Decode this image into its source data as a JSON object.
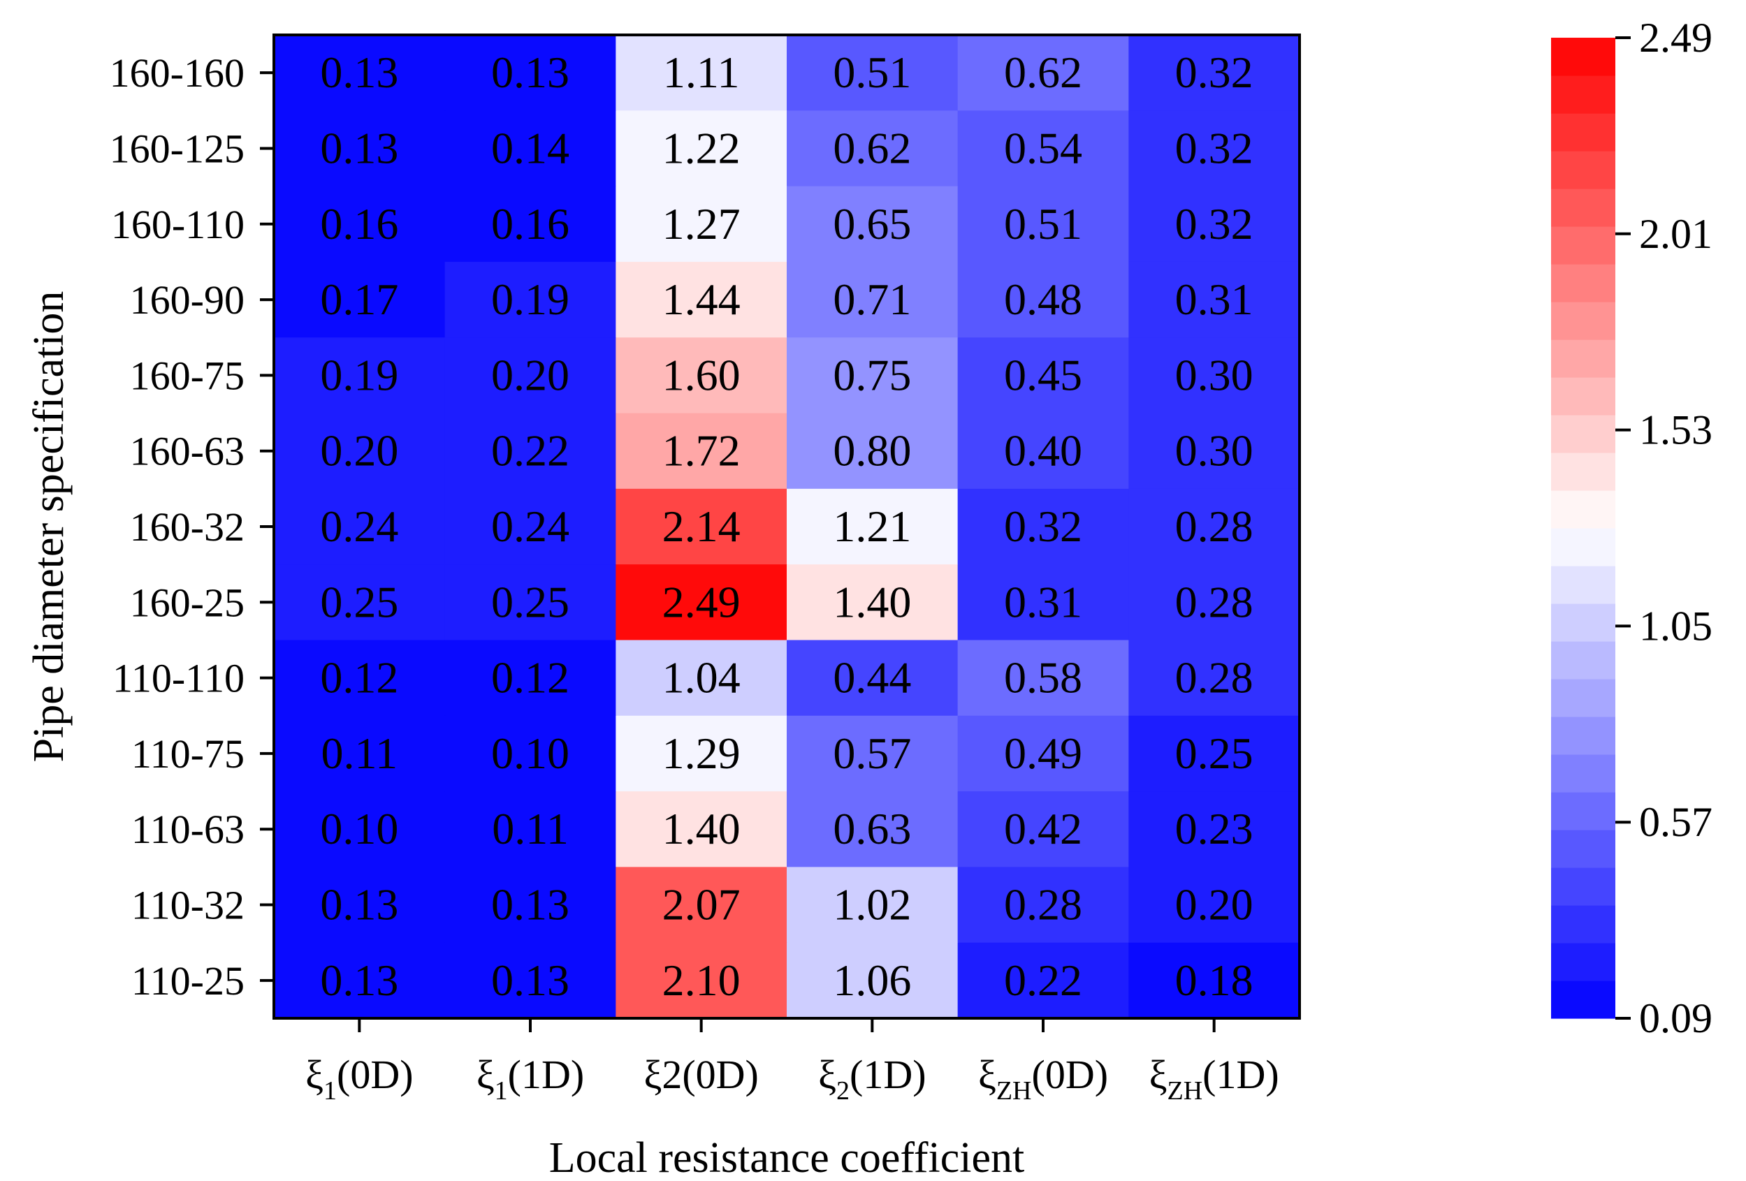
{
  "chart_data": {
    "type": "heatmap",
    "xlabel": "Local resistance coefficient",
    "ylabel": "Pipe diameter specification",
    "x_categories": [
      {
        "base": "ξ",
        "sub": "1",
        "suffix": "(0D)"
      },
      {
        "base": "ξ",
        "sub": "1",
        "suffix": "(1D)"
      },
      {
        "base": "ξ2",
        "sub": "",
        "suffix": "(0D)"
      },
      {
        "base": "ξ",
        "sub": "2",
        "suffix": "(1D)"
      },
      {
        "base": "ξ",
        "sub": "ZH",
        "suffix": "(0D)"
      },
      {
        "base": "ξ",
        "sub": "ZH",
        "suffix": "(1D)"
      }
    ],
    "y_categories": [
      "160-160",
      "160-125",
      "160-110",
      "160-90",
      "160-75",
      "160-63",
      "160-32",
      "160-25",
      "110-110",
      "110-75",
      "110-63",
      "110-32",
      "110-25"
    ],
    "values": [
      [
        "0.13",
        "0.13",
        "1.11",
        "0.51",
        "0.62",
        "0.32"
      ],
      [
        "0.13",
        "0.14",
        "1.22",
        "0.62",
        "0.54",
        "0.32"
      ],
      [
        "0.16",
        "0.16",
        "1.27",
        "0.65",
        "0.51",
        "0.32"
      ],
      [
        "0.17",
        "0.19",
        "1.44",
        "0.71",
        "0.48",
        "0.31"
      ],
      [
        "0.19",
        "0.20",
        "1.60",
        "0.75",
        "0.45",
        "0.30"
      ],
      [
        "0.20",
        "0.22",
        "1.72",
        "0.80",
        "0.40",
        "0.30"
      ],
      [
        "0.24",
        "0.24",
        "2.14",
        "1.21",
        "0.32",
        "0.28"
      ],
      [
        "0.25",
        "0.25",
        "2.49",
        "1.40",
        "0.31",
        "0.28"
      ],
      [
        "0.12",
        "0.12",
        "1.04",
        "0.44",
        "0.58",
        "0.28"
      ],
      [
        "0.11",
        "0.10",
        "1.29",
        "0.57",
        "0.49",
        "0.25"
      ],
      [
        "0.10",
        "0.11",
        "1.40",
        "0.63",
        "0.42",
        "0.23"
      ],
      [
        "0.13",
        "0.13",
        "2.07",
        "1.02",
        "0.28",
        "0.20"
      ],
      [
        "0.13",
        "0.13",
        "2.10",
        "1.06",
        "0.22",
        "0.18"
      ]
    ],
    "colorbar": {
      "min": 0.09,
      "max": 2.49,
      "ticks": [
        "0.09",
        "0.57",
        "1.05",
        "1.53",
        "2.01",
        "2.49"
      ],
      "levels": 26,
      "colors": [
        "#0000ff",
        "#ffffff",
        "#ff0000"
      ]
    }
  }
}
